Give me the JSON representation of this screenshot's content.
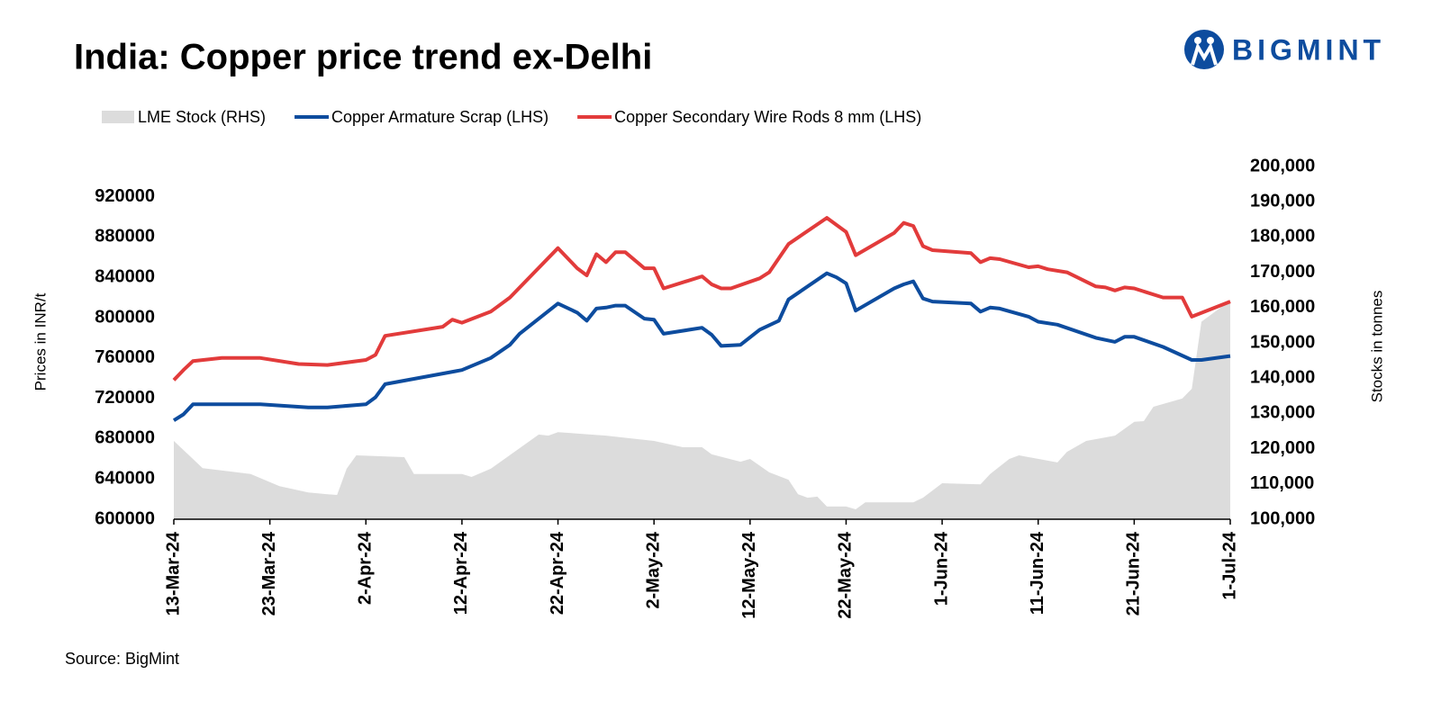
{
  "logo": "BIGMINT",
  "source": "Source: BigMint",
  "chart_data": {
    "type": "line",
    "title": "India: Copper price trend ex-Delhi",
    "y_label": "Prices in INR/t",
    "y2_label": "Stocks in tonnes",
    "xlim": [
      "13-Mar-24",
      "1-Jul-24"
    ],
    "xticks": [
      "13-Mar-24",
      "23-Mar-24",
      "2-Apr-24",
      "12-Apr-24",
      "22-Apr-24",
      "2-May-24",
      "12-May-24",
      "22-May-24",
      "1-Jun-24",
      "11-Jun-24",
      "21-Jun-24",
      "1-Jul-24"
    ],
    "ylim": [
      600000,
      950000
    ],
    "yticks": [
      600000,
      640000,
      680000,
      720000,
      760000,
      800000,
      840000,
      880000,
      920000
    ],
    "y2lim": [
      100000,
      200000
    ],
    "y2ticks": [
      {
        "value": 100000,
        "label": "100,000"
      },
      {
        "value": 110000,
        "label": "110,000"
      },
      {
        "value": 120000,
        "label": "120,000"
      },
      {
        "value": 130000,
        "label": "130,000"
      },
      {
        "value": 140000,
        "label": "140,000"
      },
      {
        "value": 150000,
        "label": "150,000"
      },
      {
        "value": 160000,
        "label": "160,000"
      },
      {
        "value": 170000,
        "label": "170,000"
      },
      {
        "value": 180000,
        "label": "180,000"
      },
      {
        "value": 190000,
        "label": "190,000"
      },
      {
        "value": 200000,
        "label": "200,000"
      }
    ],
    "grid": false,
    "series": [
      {
        "name": "LME Stock (RHS)",
        "type": "area",
        "axis": "y2",
        "color": "#dcdcdc",
        "x": [
          "13-Mar-24",
          "16-Mar-24",
          "21-Mar-24",
          "24-Mar-24",
          "27-Mar-24",
          "29-Mar-24",
          "30-Mar-24",
          "31-Mar-24",
          "1-Apr-24",
          "6-Apr-24",
          "7-Apr-24",
          "12-Apr-24",
          "13-Apr-24",
          "15-Apr-24",
          "20-Apr-24",
          "21-Apr-24",
          "22-Apr-24",
          "27-Apr-24",
          "2-May-24",
          "5-May-24",
          "7-May-24",
          "8-May-24",
          "11-May-24",
          "12-May-24",
          "14-May-24",
          "16-May-24",
          "17-May-24",
          "18-May-24",
          "19-May-24",
          "20-May-24",
          "22-May-24",
          "23-May-24",
          "24-May-24",
          "29-May-24",
          "30-May-24",
          "1-Jun-24",
          "5-Jun-24",
          "6-Jun-24",
          "8-Jun-24",
          "9-Jun-24",
          "13-Jun-24",
          "14-Jun-24",
          "16-Jun-24",
          "19-Jun-24",
          "21-Jun-24",
          "22-Jun-24",
          "23-Jun-24",
          "26-Jun-24",
          "27-Jun-24",
          "28-Jun-24",
          "29-Jun-24",
          "1-Jul-24"
        ],
        "values": [
          122200,
          114500,
          112800,
          109400,
          107600,
          107100,
          106900,
          114300,
          118100,
          117600,
          112800,
          112800,
          112000,
          114300,
          124000,
          123700,
          124700,
          123700,
          122200,
          120400,
          120400,
          118400,
          116300,
          117100,
          113300,
          111200,
          107100,
          106100,
          106400,
          103600,
          103600,
          102800,
          104800,
          104800,
          106100,
          110200,
          109900,
          112800,
          117100,
          118100,
          116100,
          119100,
          122200,
          123700,
          127600,
          127800,
          131900,
          134200,
          137000,
          156000,
          158000,
          162000
        ]
      },
      {
        "name": "Copper Armature Scrap (LHS)",
        "type": "line",
        "color": "#0d4c9e",
        "x": [
          "13-Mar-24",
          "14-Mar-24",
          "15-Mar-24",
          "22-Mar-24",
          "27-Mar-24",
          "29-Mar-24",
          "2-Apr-24",
          "3-Apr-24",
          "4-Apr-24",
          "12-Apr-24",
          "15-Apr-24",
          "17-Apr-24",
          "18-Apr-24",
          "22-Apr-24",
          "24-Apr-24",
          "25-Apr-24",
          "26-Apr-24",
          "27-Apr-24",
          "28-Apr-24",
          "29-Apr-24",
          "1-May-24",
          "2-May-24",
          "3-May-24",
          "7-May-24",
          "8-May-24",
          "9-May-24",
          "11-May-24",
          "13-May-24",
          "15-May-24",
          "16-May-24",
          "20-May-24",
          "21-May-24",
          "22-May-24",
          "23-May-24",
          "27-May-24",
          "28-May-24",
          "29-May-24",
          "30-May-24",
          "31-May-24",
          "4-Jun-24",
          "5-Jun-24",
          "6-Jun-24",
          "7-Jun-24",
          "10-Jun-24",
          "11-Jun-24",
          "13-Jun-24",
          "17-Jun-24",
          "19-Jun-24",
          "20-Jun-24",
          "21-Jun-24",
          "24-Jun-24",
          "27-Jun-24",
          "28-Jun-24",
          "1-Jul-24"
        ],
        "values": [
          698000,
          704000,
          714000,
          714000,
          711000,
          711000,
          714000,
          721000,
          734000,
          748000,
          760000,
          773000,
          784000,
          814000,
          805000,
          797000,
          809000,
          810000,
          812000,
          812000,
          799000,
          798000,
          784000,
          790000,
          783000,
          772000,
          773000,
          788000,
          797000,
          818000,
          844000,
          840000,
          834000,
          807000,
          829000,
          833000,
          836000,
          819000,
          816000,
          814000,
          806000,
          810000,
          809000,
          801000,
          796000,
          793000,
          780000,
          776000,
          781000,
          781000,
          771000,
          758000,
          758000,
          762000
        ]
      },
      {
        "name": "Copper Secondary Wire Rods 8 mm (LHS)",
        "type": "line",
        "color": "#e23b3b",
        "x": [
          "13-Mar-24",
          "14-Mar-24",
          "15-Mar-24",
          "18-Mar-24",
          "22-Mar-24",
          "26-Mar-24",
          "29-Mar-24",
          "2-Apr-24",
          "3-Apr-24",
          "4-Apr-24",
          "10-Apr-24",
          "11-Apr-24",
          "12-Apr-24",
          "15-Apr-24",
          "17-Apr-24",
          "22-Apr-24",
          "24-Apr-24",
          "25-Apr-24",
          "26-Apr-24",
          "27-Apr-24",
          "28-Apr-24",
          "29-Apr-24",
          "1-May-24",
          "2-May-24",
          "3-May-24",
          "7-May-24",
          "8-May-24",
          "9-May-24",
          "10-May-24",
          "13-May-24",
          "14-May-24",
          "16-May-24",
          "20-May-24",
          "22-May-24",
          "23-May-24",
          "27-May-24",
          "28-May-24",
          "29-May-24",
          "30-May-24",
          "31-May-24",
          "4-Jun-24",
          "5-Jun-24",
          "6-Jun-24",
          "7-Jun-24",
          "10-Jun-24",
          "11-Jun-24",
          "12-Jun-24",
          "14-Jun-24",
          "17-Jun-24",
          "18-Jun-24",
          "19-Jun-24",
          "20-Jun-24",
          "21-Jun-24",
          "24-Jun-24",
          "26-Jun-24",
          "27-Jun-24",
          "1-Jul-24"
        ],
        "values": [
          738000,
          748000,
          757000,
          760000,
          760000,
          754000,
          753000,
          758000,
          763000,
          782000,
          791000,
          798000,
          795000,
          806000,
          820000,
          869000,
          849000,
          842000,
          863000,
          855000,
          865000,
          865000,
          849000,
          849000,
          829000,
          841000,
          833000,
          829000,
          829000,
          839000,
          845000,
          873000,
          899000,
          885000,
          862000,
          884000,
          894000,
          891000,
          871000,
          867000,
          864000,
          855000,
          859000,
          858000,
          850000,
          851000,
          848000,
          845000,
          831000,
          830000,
          827000,
          830000,
          829000,
          820000,
          820000,
          801000,
          816000
        ]
      }
    ]
  }
}
